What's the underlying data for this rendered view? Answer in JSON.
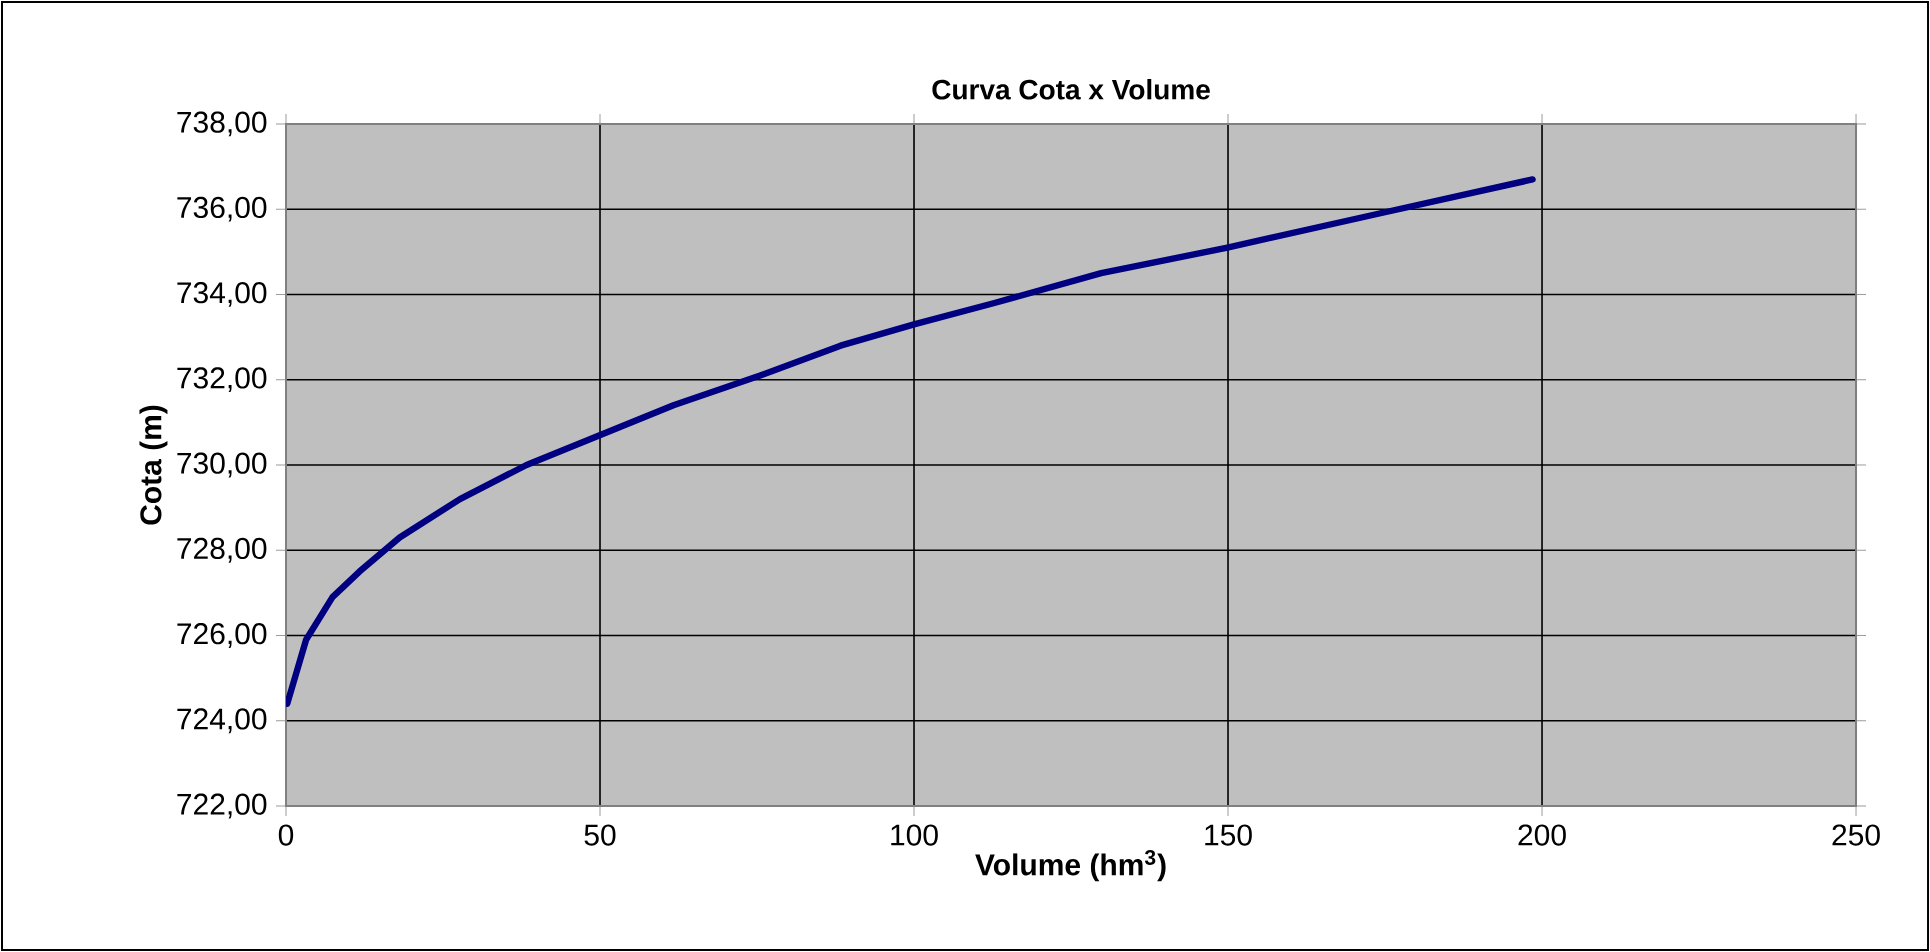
{
  "chart_data": {
    "type": "line",
    "title": "Curva Cota x Volume",
    "xlabel": "Volume (hm$^{3}$)",
    "ylabel": "Cota (m)",
    "x": [
      0.2,
      3.2,
      7.4,
      11.7,
      18.1,
      27.7,
      38.3,
      50,
      61.7,
      75.5,
      88.3,
      100,
      112.8,
      129.8,
      149.9,
      174.1,
      198.5
    ],
    "series": [
      {
        "color": "#000080",
        "values": [
          724.4,
          725.9,
          726.9,
          727.5,
          728.3,
          729.2,
          730.0,
          730.7,
          731.4,
          732.1,
          732.8,
          733.3,
          733.8,
          734.5,
          735.1,
          735.9,
          736.7
        ]
      }
    ],
    "xlim": [
      0,
      250
    ],
    "xticks": [
      0,
      50,
      100,
      150,
      200,
      250
    ],
    "ylim": [
      722,
      738
    ],
    "yticks": [
      {
        "value": 722,
        "label": "722,00"
      },
      {
        "value": 724,
        "label": "724,00"
      },
      {
        "value": 726,
        "label": "726,00"
      },
      {
        "value": 728,
        "label": "728,00"
      },
      {
        "value": 730,
        "label": "730,00"
      },
      {
        "value": 732,
        "label": "732,00"
      },
      {
        "value": 734,
        "label": "734,00"
      },
      {
        "value": 736,
        "label": "736,00"
      },
      {
        "value": 738,
        "label": "738,00"
      }
    ],
    "grid": true,
    "marker": "none",
    "line_style": "solid"
  }
}
